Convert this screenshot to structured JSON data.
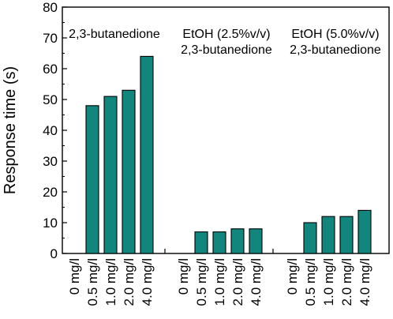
{
  "chart_data": {
    "type": "bar",
    "ylabel": "Response time (s)",
    "xlabel": "",
    "ylim": [
      0,
      80
    ],
    "yticks": [
      0,
      10,
      20,
      30,
      40,
      50,
      60,
      70,
      80
    ],
    "grid": false,
    "legend": "none",
    "bar_color": "#12857c",
    "groups": [
      {
        "label_lines": [
          "2,3-butanedione"
        ],
        "categories": [
          "0 mg/l",
          "0.5 mg/l",
          "1.0 mg/l",
          "2.0 mg/l",
          "4.0 mg/l"
        ],
        "values": [
          0,
          48,
          51,
          53,
          64
        ]
      },
      {
        "label_lines": [
          "EtOH (2.5%v/v)",
          "2,3-butanedione"
        ],
        "categories": [
          "0 mg/l",
          "0.5 mg/l",
          "1.0 mg/l",
          "2.0 mg/l",
          "4.0 mg/l"
        ],
        "values": [
          0,
          7,
          7,
          8,
          8
        ]
      },
      {
        "label_lines": [
          "EtOH (5.0%v/v)",
          "2,3-butanedione"
        ],
        "categories": [
          "0 mg/l",
          "0.5 mg/l",
          "1.0 mg/l",
          "2.0 mg/l",
          "4.0 mg/l"
        ],
        "values": [
          0,
          10,
          12,
          12,
          14
        ]
      }
    ]
  }
}
